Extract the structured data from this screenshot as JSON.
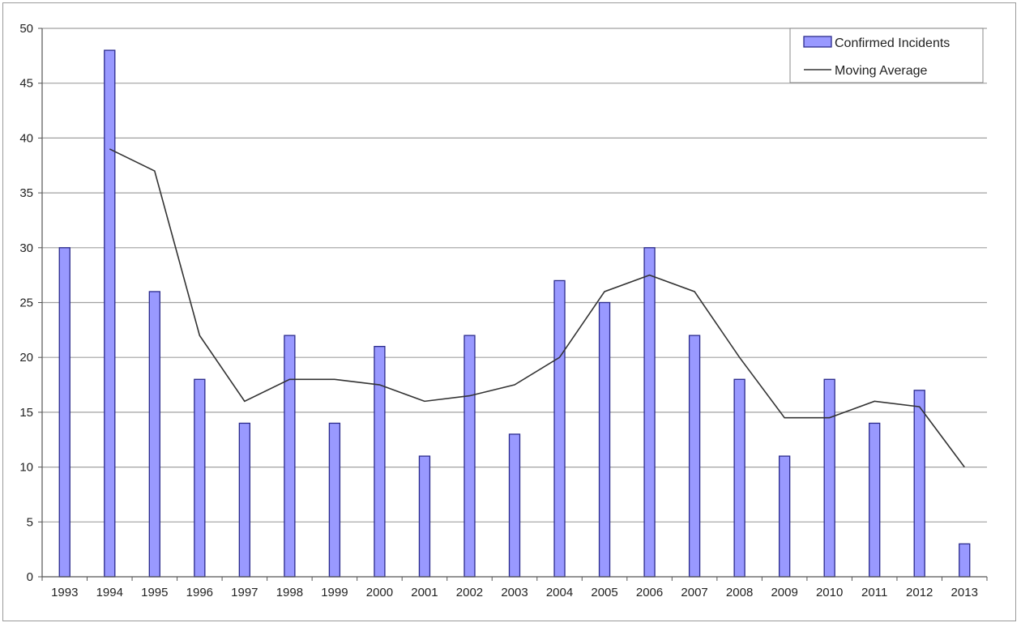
{
  "chart_data": {
    "type": "bar",
    "title": "",
    "xlabel": "",
    "ylabel": "",
    "categories": [
      "1993",
      "1994",
      "1995",
      "1996",
      "1997",
      "1998",
      "1999",
      "2000",
      "2001",
      "2002",
      "2003",
      "2004",
      "2005",
      "2006",
      "2007",
      "2008",
      "2009",
      "2010",
      "2011",
      "2012",
      "2013"
    ],
    "series": [
      {
        "name": "Confirmed Incidents",
        "kind": "bar",
        "color": "#9999ff",
        "edge_color": "#2b2b8c",
        "values": [
          30,
          48,
          26,
          18,
          14,
          22,
          14,
          21,
          11,
          22,
          13,
          27,
          25,
          30,
          22,
          18,
          11,
          18,
          14,
          17,
          3
        ]
      },
      {
        "name": "Moving Average",
        "kind": "line",
        "color": "#333333",
        "values": [
          null,
          39,
          37,
          22,
          16,
          18,
          18,
          17.5,
          16,
          16.5,
          17.5,
          20,
          26,
          27.5,
          26,
          20,
          14.5,
          14.5,
          16,
          15.5,
          10
        ]
      }
    ],
    "ylim": [
      0,
      50
    ],
    "yticks": [
      0,
      5,
      10,
      15,
      20,
      25,
      30,
      35,
      40,
      45,
      50
    ],
    "grid": true,
    "legend_position": "top-right"
  }
}
